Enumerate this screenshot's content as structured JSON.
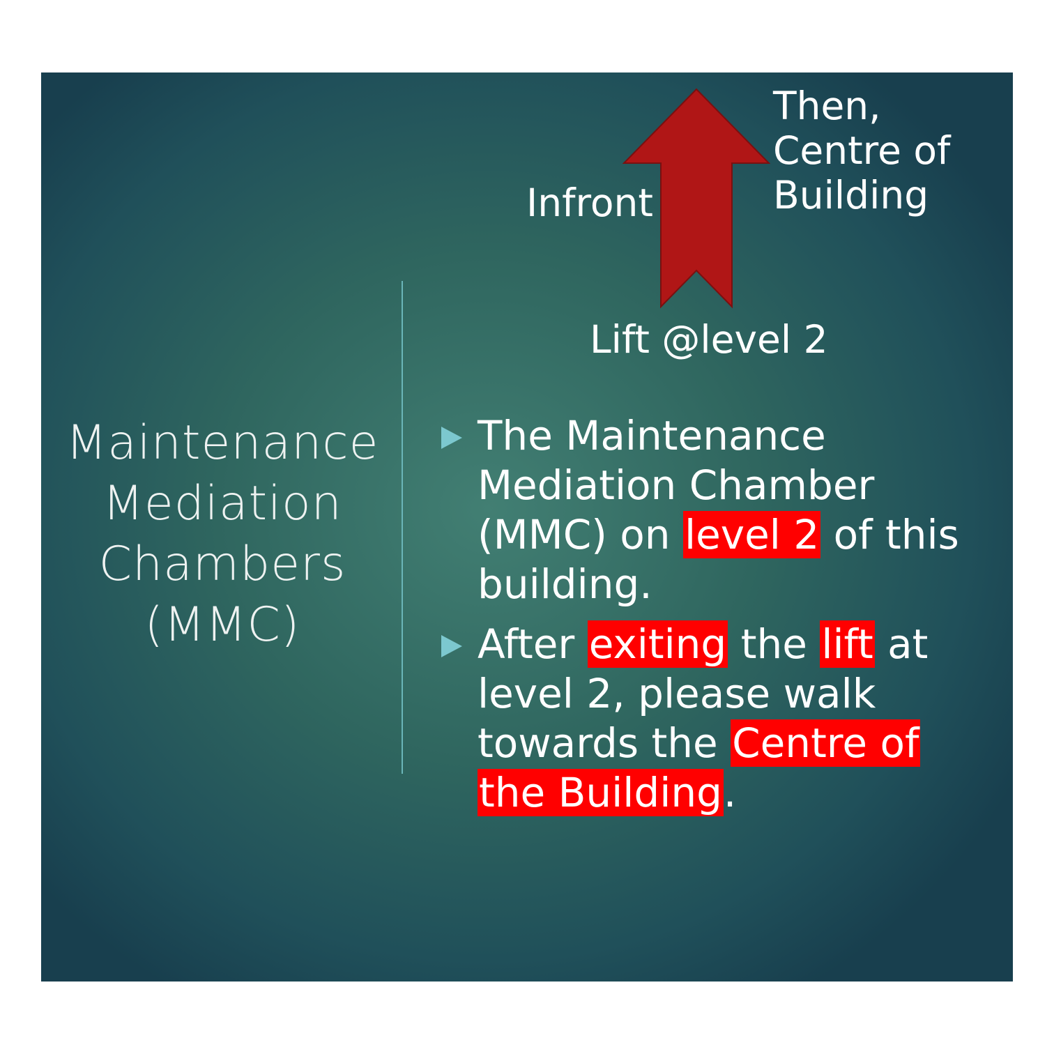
{
  "title": {
    "lines": [
      "Maintenance",
      "Mediation",
      "Chambers",
      "(MMC)"
    ]
  },
  "diagram": {
    "arrow_color": "#b01616",
    "labels": {
      "left": "Infront",
      "right": [
        "Then,",
        "Centre of",
        "Building"
      ],
      "bottom": "Lift @level 2"
    }
  },
  "highlight_color": "#ff0000",
  "bullets": [
    {
      "segments": {
        "l1": "The Maintenance",
        "l2": "Mediation Chamber",
        "l3a": "(MMC) on ",
        "l3b": "level 2",
        "l3c": " of this",
        "l4": "building."
      }
    },
    {
      "segments": {
        "l1a": "After ",
        "l1b": "exiting",
        "l1c": " the ",
        "l1d": "lift",
        "l1e": " at",
        "l2": "level 2, please walk",
        "l3a": "towards the ",
        "l3b": "Centre of ",
        "l4a": "the Building",
        "l4b": "."
      }
    }
  ]
}
